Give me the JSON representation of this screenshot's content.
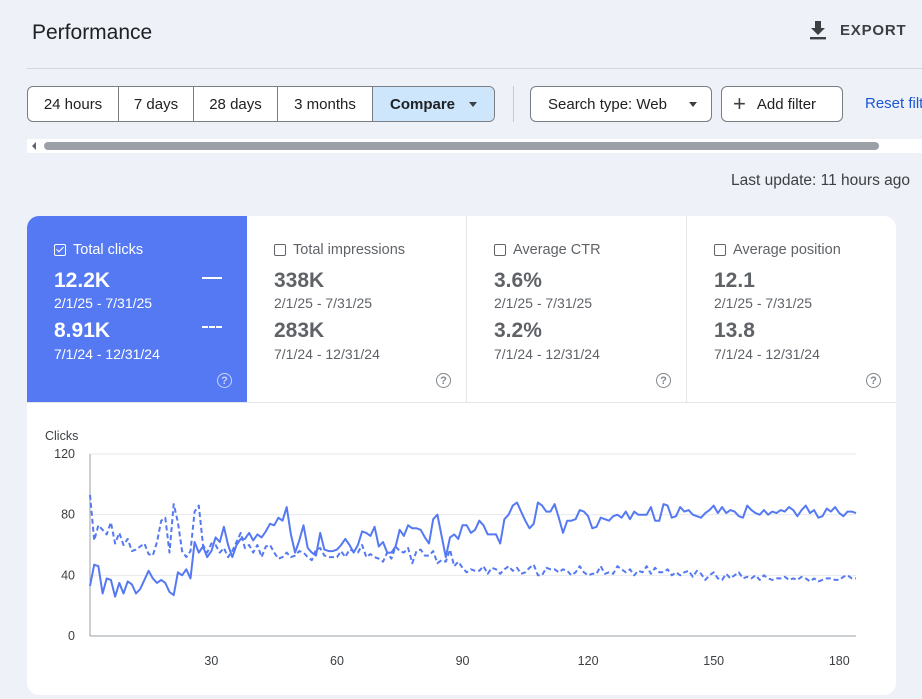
{
  "header": {
    "title": "Performance",
    "export_label": "EXPORT"
  },
  "filters": {
    "ranges": [
      "24 hours",
      "7 days",
      "28 days",
      "3 months"
    ],
    "compare_label": "Compare",
    "search_type_label": "Search type: Web",
    "add_filter_label": "Add filter",
    "reset_label": "Reset filters"
  },
  "status": {
    "last_update": "Last update: 11 hours ago"
  },
  "metrics": [
    {
      "label": "Total clicks",
      "checked": true,
      "value1": "12.2K",
      "date1": "2/1/25 - 7/31/25",
      "value2": "8.91K",
      "date2": "7/1/24 - 12/31/24"
    },
    {
      "label": "Total impressions",
      "checked": false,
      "value1": "338K",
      "date1": "2/1/25 - 7/31/25",
      "value2": "283K",
      "date2": "7/1/24 - 12/31/24"
    },
    {
      "label": "Average CTR",
      "checked": false,
      "value1": "3.6%",
      "date1": "2/1/25 - 7/31/25",
      "value2": "3.2%",
      "date2": "7/1/24 - 12/31/24"
    },
    {
      "label": "Average position",
      "checked": false,
      "value1": "12.1",
      "date1": "2/1/25 - 7/31/25",
      "value2": "13.8",
      "date2": "7/1/24 - 12/31/24"
    }
  ],
  "colors": {
    "accent": "#5579f2",
    "compare_button": "#cde6fb",
    "link": "#1a56d6"
  },
  "chart_data": {
    "type": "line",
    "ylabel": "Clicks",
    "ylim": [
      0,
      120
    ],
    "yticks": [
      0,
      40,
      80,
      120
    ],
    "xlim": [
      1,
      184
    ],
    "xticks": [
      30,
      60,
      90,
      120,
      150,
      180
    ],
    "grid": true,
    "series": [
      {
        "style": "solid",
        "values": [
          33,
          47,
          46,
          28,
          38,
          37,
          26,
          35,
          28,
          36,
          34,
          28,
          31,
          37,
          43,
          38,
          35,
          37,
          35,
          29,
          27,
          42,
          40,
          44,
          38,
          62,
          55,
          59,
          52,
          56,
          65,
          62,
          72,
          60,
          52,
          60,
          64,
          64,
          68,
          63,
          67,
          65,
          69,
          74,
          73,
          78,
          76,
          85,
          67,
          55,
          63,
          73,
          58,
          55,
          53,
          68,
          57,
          56,
          56,
          57,
          60,
          64,
          60,
          55,
          60,
          69,
          68,
          66,
          72,
          59,
          62,
          55,
          55,
          59,
          70,
          66,
          73,
          71,
          71,
          70,
          65,
          61,
          77,
          80,
          66,
          52,
          65,
          67,
          64,
          73,
          73,
          68,
          70,
          76,
          73,
          67,
          67,
          67,
          61,
          77,
          80,
          86,
          88,
          82,
          76,
          71,
          74,
          88,
          86,
          82,
          82,
          87,
          78,
          68,
          76,
          76,
          77,
          83,
          82,
          79,
          71,
          72,
          78,
          77,
          76,
          79,
          80,
          78,
          82,
          77,
          82,
          80,
          80,
          80,
          85,
          76,
          76,
          87,
          86,
          78,
          79,
          85,
          82,
          83,
          80,
          79,
          78,
          81,
          83,
          86,
          81,
          85,
          81,
          83,
          82,
          79,
          78,
          86,
          83,
          81,
          80,
          83,
          80,
          82,
          81,
          83,
          82,
          85,
          83,
          79,
          83,
          86,
          81,
          83,
          78,
          79,
          84,
          82,
          85,
          81,
          79,
          82,
          82,
          81
        ]
      },
      {
        "style": "dashed",
        "values": [
          93,
          63,
          73,
          70,
          67,
          75,
          61,
          68,
          60,
          64,
          56,
          57,
          59,
          61,
          54,
          53,
          62,
          76,
          78,
          55,
          87,
          75,
          56,
          52,
          56,
          82,
          86,
          60,
          55,
          61,
          60,
          55,
          58,
          52,
          56,
          62,
          68,
          58,
          60,
          55,
          60,
          52,
          59,
          60,
          55,
          51,
          52,
          55,
          52,
          53,
          56,
          55,
          52,
          50,
          57,
          58,
          53,
          52,
          52,
          52,
          56,
          52,
          57,
          56,
          55,
          60,
          52,
          54,
          52,
          51,
          49,
          55,
          51,
          59,
          56,
          55,
          58,
          48,
          56,
          57,
          53,
          53,
          56,
          48,
          50,
          49,
          57,
          46,
          49,
          45,
          42,
          44,
          43,
          43,
          46,
          41,
          45,
          44,
          41,
          44,
          46,
          43,
          45,
          41,
          42,
          45,
          47,
          40,
          40,
          45,
          44,
          44,
          42,
          44,
          43,
          40,
          42,
          46,
          42,
          40,
          41,
          41,
          46,
          41,
          42,
          41,
          46,
          44,
          42,
          44,
          40,
          43,
          42,
          46,
          41,
          45,
          42,
          42,
          44,
          40,
          42,
          40,
          42,
          43,
          39,
          43,
          41,
          37,
          40,
          42,
          38,
          37,
          41,
          38,
          40,
          42,
          38,
          39,
          38,
          40,
          37,
          40,
          38,
          37,
          38,
          38,
          39,
          37,
          38,
          37,
          39,
          38,
          36,
          38,
          36,
          37,
          38,
          38,
          37,
          37,
          39,
          40,
          38,
          38
        ]
      }
    ]
  }
}
